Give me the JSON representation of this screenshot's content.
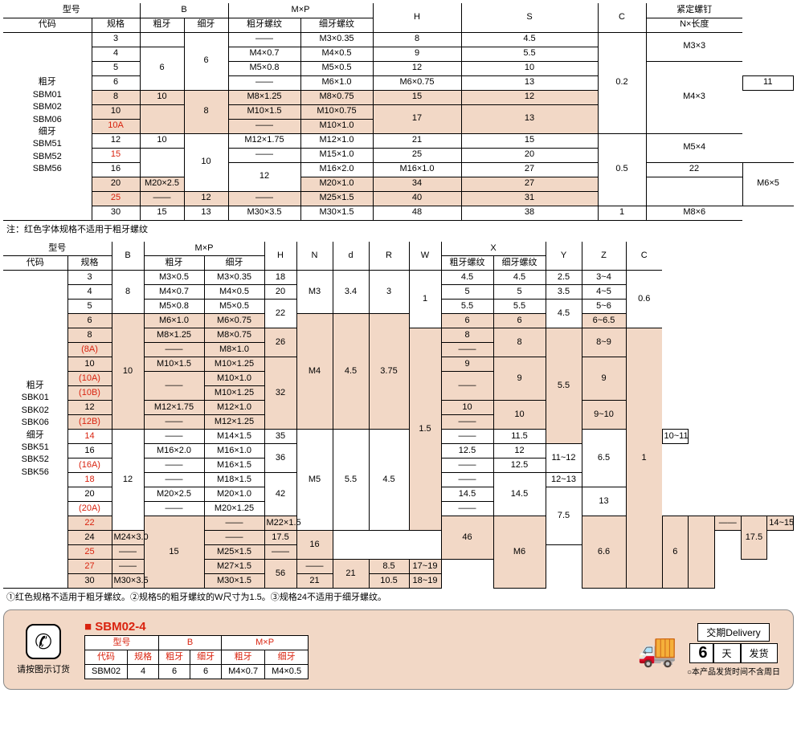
{
  "table1": {
    "headers": {
      "model": "型号",
      "code": "代码",
      "spec": "规格",
      "B": "B",
      "B_coarse": "粗牙",
      "B_fine": "细牙",
      "MxP": "M×P",
      "MxP_coarse": "粗牙螺纹",
      "MxP_fine": "细牙螺纹",
      "H": "H",
      "S": "S",
      "C": "C",
      "screw": "紧定螺钉",
      "screw_sub": "N×长度"
    },
    "code_labels": {
      "coarse_label": "粗牙",
      "coarse_codes": "SBM01\nSBM02\nSBM06",
      "fine_label": "细牙",
      "fine_codes": "SBM51\nSBM52\nSBM56"
    },
    "rows": [
      {
        "spec": "3",
        "Bc": "",
        "Bf": "",
        "MPc": "——",
        "MPf": "M3×0.35",
        "H": "8",
        "S": "4.5",
        "shade": false,
        "red": false
      },
      {
        "spec": "4",
        "Bc": "6",
        "Bf": "6",
        "MPc": "M4×0.7",
        "MPf": "M4×0.5",
        "H": "9",
        "S": "5.5",
        "shade": false,
        "red": false,
        "Bc_span": 3,
        "Bf_span": 4
      },
      {
        "spec": "5",
        "Bc": "",
        "Bf": "",
        "MPc": "M5×0.8",
        "MPf": "M5×0.5",
        "H": "12",
        "S": "10",
        "shade": false,
        "red": false
      },
      {
        "spec": "6",
        "Bc": "——",
        "Bf": "",
        "MPc": "M6×1.0",
        "MPf": "M6×0.75",
        "H": "13",
        "S": "11",
        "shade": false,
        "red": false
      },
      {
        "spec": "8",
        "Bc": "10",
        "Bf": "8",
        "MPc": "M8×1.25",
        "MPf": "M8×0.75",
        "H": "15",
        "S": "12",
        "shade": true,
        "red": false,
        "Bf_span": 3
      },
      {
        "spec": "10",
        "Bc": "",
        "Bf": "",
        "MPc": "M10×1.5",
        "MPf": "M10×0.75",
        "H": "",
        "S": "",
        "shade": true,
        "red": false,
        "H_span": 2,
        "H_val": "17",
        "S_span": 2,
        "S_val": "13",
        "Bc_span": 2
      },
      {
        "spec": "10A",
        "Bc": "——",
        "Bf": "",
        "MPc": "——",
        "MPf": "M10×1.0",
        "H": "",
        "S": "",
        "shade": true,
        "red": true
      },
      {
        "spec": "12",
        "Bc": "10",
        "Bf": "10",
        "MPc": "M12×1.75",
        "MPf": "M12×1.0",
        "H": "21",
        "S": "15",
        "shade": false,
        "red": false,
        "Bf_span": 4
      },
      {
        "spec": "15",
        "Bc": "",
        "Bf": "",
        "MPc": "——",
        "MPf": "M15×1.0",
        "H": "25",
        "S": "20",
        "shade": false,
        "red": true,
        "Bc_span": 2
      },
      {
        "spec": "16",
        "Bc": "12",
        "Bf": "",
        "MPc": "M16×2.0",
        "MPf": "M16×1.0",
        "H": "27",
        "S": "22",
        "shade": false,
        "red": false,
        "Bc_span": 2
      },
      {
        "spec": "20",
        "Bc": "",
        "Bf": "",
        "MPc": "M20×2.5",
        "MPf": "M20×1.0",
        "H": "34",
        "S": "27",
        "shade": true,
        "red": false
      },
      {
        "spec": "25",
        "Bc": "——",
        "Bf": "12",
        "MPc": "——",
        "MPf": "M25×1.5",
        "H": "40",
        "S": "31",
        "shade": true,
        "red": true
      },
      {
        "spec": "30",
        "Bc": "15",
        "Bf": "13",
        "MPc": "M30×3.5",
        "MPf": "M30×1.5",
        "H": "48",
        "S": "38",
        "shade": false,
        "red": false
      }
    ],
    "C_groups": [
      {
        "val": "0.2",
        "span": 7
      },
      {
        "val": "0.5",
        "span": 4
      },
      {
        "val": "1",
        "span": 1
      }
    ],
    "screw_groups": [
      {
        "val": "M3×3",
        "span": 2
      },
      {
        "val": "M4×3",
        "span": 4
      },
      {
        "val": "M5×4",
        "span": 2
      },
      {
        "val": "M6×5",
        "span": 2
      },
      {
        "val": "M8×6",
        "span": 1
      }
    ],
    "note": "注：红色字体规格不适用于粗牙螺纹"
  },
  "table2": {
    "headers": {
      "model": "型号",
      "code": "代码",
      "spec": "规格",
      "B": "B",
      "MxP": "M×P",
      "MxP_c": "粗牙",
      "MxP_f": "细牙",
      "H": "H",
      "N": "N",
      "d": "d",
      "R": "R",
      "W": "W",
      "X": "X",
      "X_c": "粗牙螺纹",
      "X_f": "细牙螺纹",
      "Y": "Y",
      "Z": "Z",
      "C": "C"
    },
    "code_labels": {
      "coarse_label": "粗牙",
      "coarse_codes": "SBK01\nSBK02\nSBK06",
      "fine_label": "细牙",
      "fine_codes": "SBK51\nSBK52\nSBK56"
    },
    "note": "①红色规格不适用于粗牙螺纹。②规格5的粗牙螺纹的W尺寸为1.5。③规格24不适用于细牙螺纹。"
  },
  "footer": {
    "order_hint": "请按图示订货",
    "title": "SBM02-4",
    "headers": {
      "model": "型号",
      "code": "代码",
      "spec": "规格",
      "B": "B",
      "Bc": "粗牙",
      "Bf": "细牙",
      "MxP": "M×P",
      "MPc": "粗牙",
      "MPf": "细牙"
    },
    "row": {
      "code": "SBM02",
      "spec": "4",
      "Bc": "6",
      "Bf": "6",
      "MPc": "M4×0.7",
      "MPf": "M4×0.5"
    },
    "delivery_label": "交期Delivery",
    "days": "6",
    "days_unit": "天",
    "ship": "发货",
    "delivery_note": "○本产品发货时间不含周日"
  }
}
